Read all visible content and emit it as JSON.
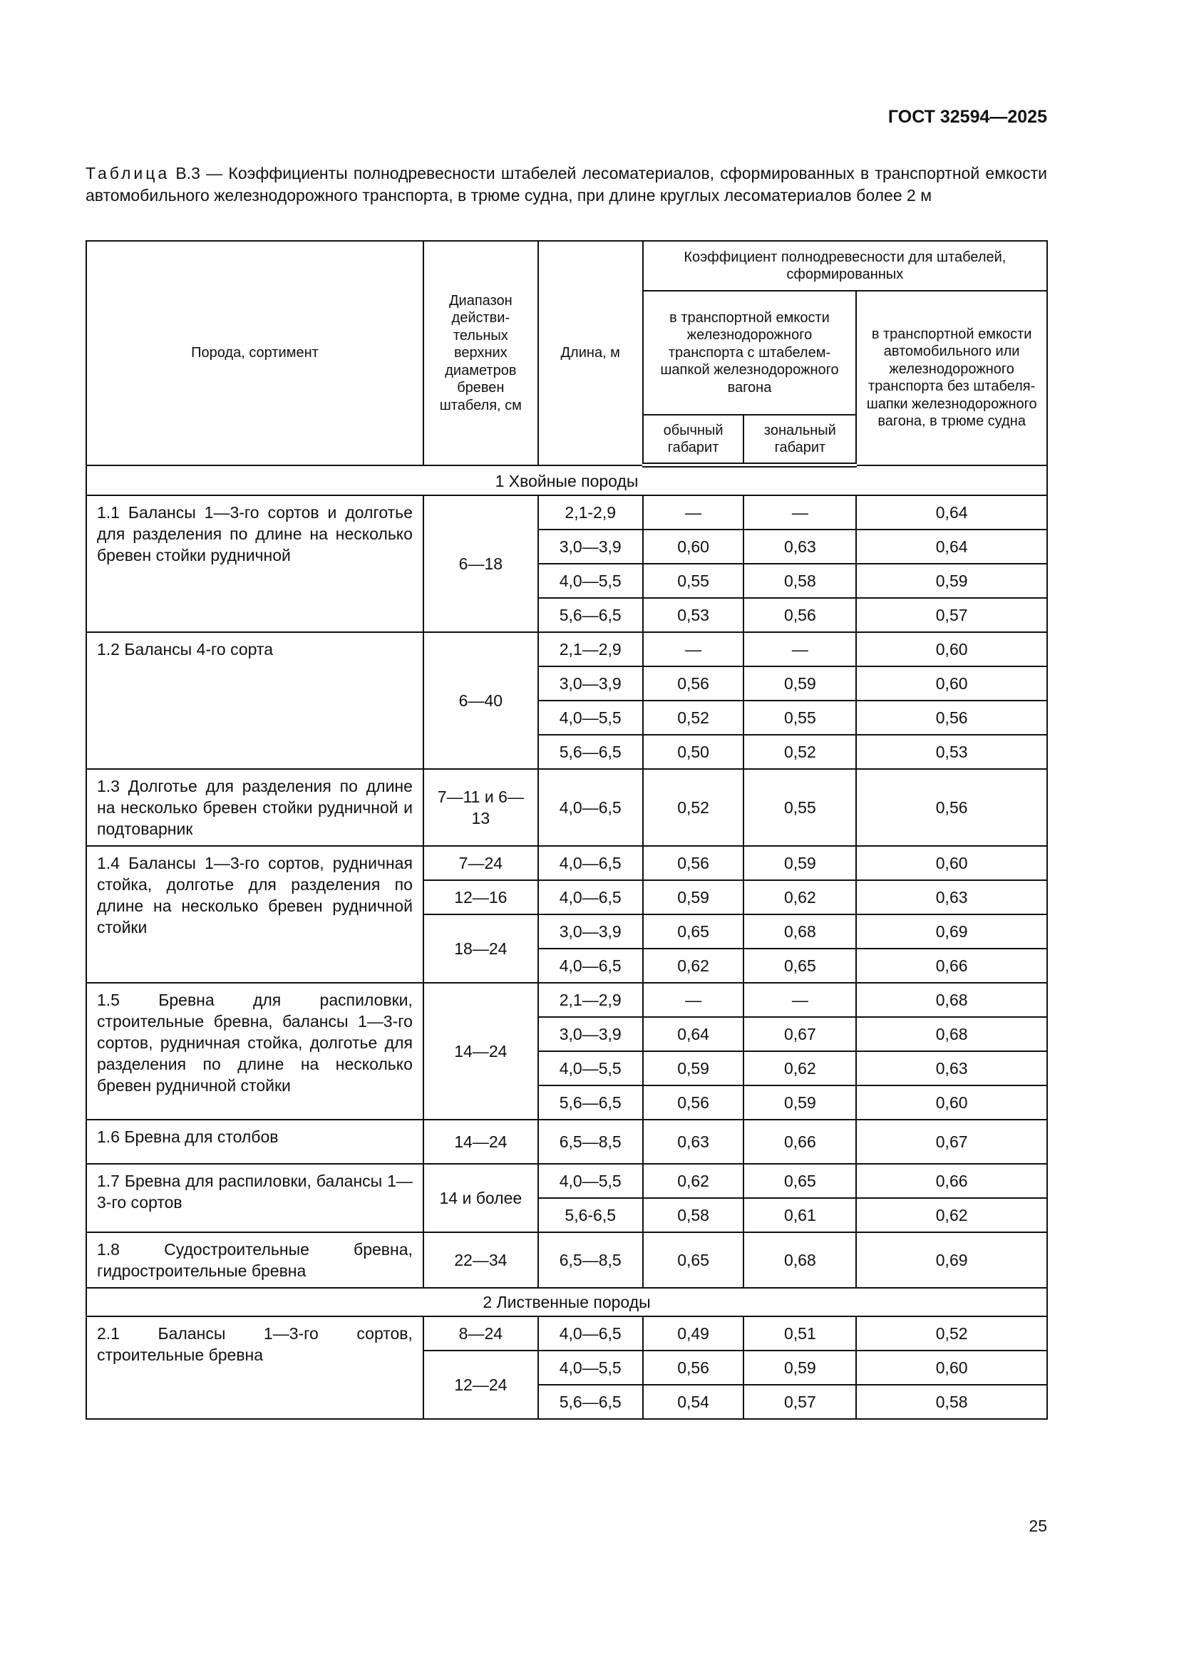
{
  "header": {
    "doc_code": "ГОСТ 32594—2025"
  },
  "caption": {
    "prefix": "Таблица",
    "text": " В.3 — Коэффициенты полнодревесности штабелей лесоматериалов, сформированных в транспортной емкости автомобильного железнодорожного транспорта, в трюме судна, при длине круглых лесоматериалов более 2 м"
  },
  "table": {
    "headers": {
      "species": "Порода, сортимент",
      "diameter": "Диапазон действи-тельных верхних диаметров бревен штабеля, см",
      "length": "Длина, м",
      "coef": "Коэффициент полнодревесности для штабелей, сформированных",
      "rail": "в транспортной емкости железнодорожного транспорта с штабелем-шапкой железнодорожного вагона",
      "other": "в транспортной емкости автомобильного или железнодорожного транспорта без штабеля-шапки железнодорожного вагона, в трюме судна",
      "normal": "обычный габарит",
      "zonal": "зональный габарит"
    },
    "sections": [
      {
        "title": "1 Хвойные породы",
        "groups": [
          {
            "name": "1.1 Балансы 1—3-го сортов и долготье для разделения по длине на несколько бревен стойки рудничной",
            "diams": [
              {
                "range": "6—18",
                "rows": [
                  [
                    "2,1-2,9",
                    "—",
                    "—",
                    "0,64"
                  ],
                  [
                    "3,0—3,9",
                    "0,60",
                    "0,63",
                    "0,64"
                  ],
                  [
                    "4,0—5,5",
                    "0,55",
                    "0,58",
                    "0,59"
                  ],
                  [
                    "5,6—6,5",
                    "0,53",
                    "0,56",
                    "0,57"
                  ]
                ]
              }
            ]
          },
          {
            "name": "1.2 Балансы 4-го сорта",
            "diams": [
              {
                "range": "6—40",
                "rows": [
                  [
                    "2,1—2,9",
                    "—",
                    "—",
                    "0,60"
                  ],
                  [
                    "3,0—3,9",
                    "0,56",
                    "0,59",
                    "0,60"
                  ],
                  [
                    "4,0—5,5",
                    "0,52",
                    "0,55",
                    "0,56"
                  ],
                  [
                    "5,6—6,5",
                    "0,50",
                    "0,52",
                    "0,53"
                  ]
                ]
              }
            ]
          },
          {
            "name": "1.3 Долготье для разделения по длине на несколько бревен стойки рудничной и подтоварник",
            "tall": 3,
            "diams": [
              {
                "range": "7—11 и 6—13",
                "rows": [
                  [
                    "4,0—6,5",
                    "0,52",
                    "0,55",
                    "0,56"
                  ]
                ]
              }
            ]
          },
          {
            "name": "1.4 Балансы 1—3-го сортов, рудничная стойка, долготье для разделения по длине на несколько бревен рудничной стойки",
            "diams": [
              {
                "range": "7—24",
                "rows": [
                  [
                    "4,0—6,5",
                    "0,56",
                    "0,59",
                    "0,60"
                  ]
                ]
              },
              {
                "range": "12—16",
                "rows": [
                  [
                    "4,0—6,5",
                    "0,59",
                    "0,62",
                    "0,63"
                  ]
                ]
              },
              {
                "range": "18—24",
                "rows": [
                  [
                    "3,0—3,9",
                    "0,65",
                    "0,68",
                    "0,69"
                  ],
                  [
                    "4,0—6,5",
                    "0,62",
                    "0,65",
                    "0,66"
                  ]
                ]
              }
            ]
          },
          {
            "name": "1.5 Бревна для распиловки, строительные бревна, балансы 1—3-го сортов, рудничная стойка, долготье для разделения по длине на несколько бревен рудничной стойки",
            "diams": [
              {
                "range": "14—24",
                "rows": [
                  [
                    "2,1—2,9",
                    "—",
                    "—",
                    "0,68"
                  ],
                  [
                    "3,0—3,9",
                    "0,64",
                    "0,67",
                    "0,68"
                  ],
                  [
                    "4,0—5,5",
                    "0,59",
                    "0,62",
                    "0,63"
                  ],
                  [
                    "5,6—6,5",
                    "0,56",
                    "0,59",
                    "0,60"
                  ]
                ]
              }
            ]
          },
          {
            "name": "1.6 Бревна для столбов",
            "diams": [
              {
                "range": "14—24",
                "rows": [
                  [
                    "6,5—8,5",
                    "0,63",
                    "0,66",
                    "0,67"
                  ]
                ]
              }
            ]
          },
          {
            "name": "1.7 Бревна для распиловки, балансы 1—3-го сортов",
            "diams": [
              {
                "range": "14 и более",
                "rows": [
                  [
                    "4,0—5,5",
                    "0,62",
                    "0,65",
                    "0,66"
                  ],
                  [
                    "5,6-6,5",
                    "0,58",
                    "0,61",
                    "0,62"
                  ]
                ]
              }
            ]
          },
          {
            "name": "1.8 Судостроительные бревна, гидростроительные бревна",
            "tall": 2,
            "diams": [
              {
                "range": "22—34",
                "rows": [
                  [
                    "6,5—8,5",
                    "0,65",
                    "0,68",
                    "0,69"
                  ]
                ]
              }
            ]
          }
        ]
      },
      {
        "title": "2 Лиственные породы",
        "groups": [
          {
            "name": "2.1 Балансы 1—3-го сортов, строительные бревна",
            "diams": [
              {
                "range": "8—24",
                "rows": [
                  [
                    "4,0—6,5",
                    "0,49",
                    "0,51",
                    "0,52"
                  ]
                ]
              },
              {
                "range": "12—24",
                "rows": [
                  [
                    "4,0—5,5",
                    "0,56",
                    "0,59",
                    "0,60"
                  ],
                  [
                    "5,6—6,5",
                    "0,54",
                    "0,57",
                    "0,58"
                  ]
                ]
              }
            ]
          }
        ]
      }
    ]
  },
  "footer": {
    "page_number": "25"
  }
}
